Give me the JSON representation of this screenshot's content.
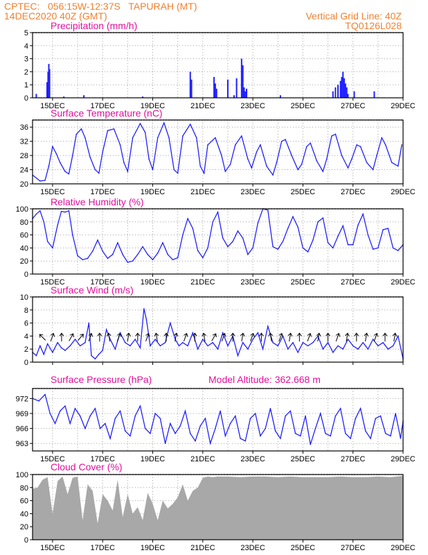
{
  "header": {
    "line1": "CPTEC:   056:15W-12:37S   TAPURAH (MT)",
    "line2": "14DEC2020 40Z (GMT)",
    "grid_note": "Vertical Grid Line: 40Z",
    "code": "TQ0126L028"
  },
  "colors": {
    "header": "#f08030",
    "title": "#e0109a",
    "line": "#2020ff",
    "cloud": "#a8a8a8"
  },
  "x_axis": {
    "range": [
      14.2,
      29.0
    ],
    "ticks": [
      {
        "day": 15,
        "label": "15DEC"
      },
      {
        "day": 17,
        "label": "17DEC"
      },
      {
        "day": 19,
        "label": "19DEC"
      },
      {
        "day": 21,
        "label": "21DEC"
      },
      {
        "day": 23,
        "label": "23DEC"
      },
      {
        "day": 25,
        "label": "25DEC"
      },
      {
        "day": 27,
        "label": "27DEC"
      },
      {
        "day": 29,
        "label": "29DEC"
      }
    ]
  },
  "chart_data": [
    {
      "type": "bar",
      "title": "Precipitation (mm/h)",
      "ylim": [
        0,
        5
      ],
      "yticks": [
        0,
        1,
        2,
        3,
        4,
        5
      ],
      "x": [
        14.35,
        14.78,
        14.82,
        14.85,
        14.88,
        15.45,
        16.25,
        18.6,
        20.5,
        20.55,
        21.45,
        21.5,
        21.55,
        22.0,
        22.25,
        22.35,
        22.55,
        22.6,
        22.65,
        22.7,
        22.75,
        24.1,
        26.2,
        26.3,
        26.4,
        26.5,
        26.55,
        26.6,
        26.65,
        26.7,
        26.75,
        26.8,
        27.05,
        27.85
      ],
      "values": [
        0.3,
        1.2,
        2.0,
        2.6,
        2.2,
        0.1,
        0.2,
        0.1,
        2.0,
        1.4,
        1.6,
        1.1,
        0.7,
        1.4,
        0.2,
        1.5,
        3.0,
        2.5,
        0.8,
        0.5,
        0.7,
        0.2,
        0.5,
        0.8,
        1.0,
        1.3,
        1.6,
        2.0,
        1.5,
        1.1,
        0.8,
        0.3,
        0.5,
        0.5
      ]
    },
    {
      "type": "line",
      "title": "Surface Temperature (nC)",
      "ylim": [
        20,
        38
      ],
      "yticks": [
        20,
        24,
        28,
        32,
        36
      ],
      "x": [
        14.2,
        14.5,
        14.7,
        14.85,
        15.0,
        15.15,
        15.3,
        15.5,
        15.65,
        15.8,
        15.95,
        16.15,
        16.3,
        16.5,
        16.7,
        16.85,
        17.0,
        17.2,
        17.45,
        17.7,
        17.85,
        18.0,
        18.2,
        18.5,
        18.7,
        18.85,
        19.0,
        19.2,
        19.45,
        19.65,
        19.85,
        20.0,
        20.2,
        20.5,
        20.75,
        20.9,
        21.05,
        21.2,
        21.5,
        21.75,
        21.9,
        22.1,
        22.3,
        22.55,
        22.8,
        22.95,
        23.15,
        23.3,
        23.55,
        23.8,
        23.95,
        24.15,
        24.3,
        24.55,
        24.8,
        24.95,
        25.15,
        25.3,
        25.55,
        25.8,
        25.95,
        26.15,
        26.3,
        26.55,
        26.8,
        26.95,
        27.15,
        27.3,
        27.55,
        27.8,
        27.95,
        28.15,
        28.3,
        28.55,
        28.8,
        28.95
      ],
      "values": [
        22.5,
        20.8,
        21.0,
        25.0,
        30.5,
        28.5,
        26.0,
        23.5,
        22.8,
        28.0,
        34.0,
        35.5,
        33.0,
        27.5,
        24.0,
        23.0,
        29.0,
        35.0,
        35.5,
        31.0,
        26.0,
        23.5,
        33.0,
        37.0,
        34.5,
        27.0,
        24.0,
        33.0,
        37.2,
        33.0,
        24.0,
        23.0,
        33.5,
        36.8,
        33.0,
        25.0,
        23.0,
        31.0,
        33.0,
        28.0,
        23.5,
        25.5,
        31.0,
        33.5,
        27.0,
        24.5,
        29.0,
        31.0,
        25.0,
        22.5,
        26.0,
        32.0,
        32.5,
        28.0,
        24.0,
        25.5,
        30.5,
        31.5,
        26.5,
        23.5,
        27.0,
        33.5,
        34.0,
        28.0,
        24.5,
        27.0,
        31.0,
        30.5,
        26.0,
        24.0,
        28.0,
        33.0,
        31.0,
        26.0,
        25.0,
        31.0
      ]
    },
    {
      "type": "line",
      "title": "Relative Humidity (%)",
      "ylim": [
        0,
        100
      ],
      "yticks": [
        0,
        20,
        40,
        60,
        80,
        100
      ],
      "x": [
        14.2,
        14.35,
        14.5,
        14.65,
        14.8,
        15.0,
        15.2,
        15.35,
        15.5,
        15.65,
        15.8,
        16.0,
        16.2,
        16.4,
        16.6,
        16.8,
        17.0,
        17.2,
        17.4,
        17.6,
        17.8,
        18.0,
        18.2,
        18.4,
        18.6,
        18.8,
        19.0,
        19.2,
        19.4,
        19.6,
        19.8,
        20.0,
        20.2,
        20.4,
        20.6,
        20.8,
        21.0,
        21.2,
        21.4,
        21.6,
        21.8,
        22.0,
        22.2,
        22.4,
        22.6,
        22.8,
        23.0,
        23.2,
        23.4,
        23.6,
        23.8,
        24.0,
        24.2,
        24.4,
        24.6,
        24.8,
        25.0,
        25.2,
        25.4,
        25.6,
        25.8,
        26.0,
        26.2,
        26.4,
        26.6,
        26.8,
        27.0,
        27.2,
        27.4,
        27.6,
        27.8,
        28.0,
        28.2,
        28.4,
        28.6,
        28.8,
        29.0
      ],
      "values": [
        85,
        92,
        97,
        80,
        50,
        40,
        75,
        96,
        95,
        97,
        60,
        28,
        22,
        24,
        35,
        52,
        35,
        24,
        30,
        48,
        30,
        18,
        20,
        30,
        42,
        30,
        22,
        32,
        48,
        30,
        22,
        25,
        60,
        85,
        70,
        36,
        25,
        40,
        80,
        95,
        55,
        42,
        50,
        66,
        55,
        30,
        40,
        78,
        100,
        98,
        42,
        38,
        50,
        70,
        88,
        72,
        40,
        34,
        52,
        80,
        86,
        48,
        40,
        58,
        74,
        45,
        45,
        75,
        92,
        60,
        38,
        40,
        68,
        70,
        40,
        36,
        45
      ]
    },
    {
      "type": "line",
      "title": "Surface Wind (m/s)",
      "ylim": [
        0,
        10
      ],
      "yticks": [
        0,
        2,
        4,
        6,
        8,
        10
      ],
      "x": [
        14.2,
        14.35,
        14.5,
        14.65,
        14.8,
        15.0,
        15.2,
        15.35,
        15.5,
        15.7,
        15.9,
        16.1,
        16.3,
        16.45,
        16.55,
        16.7,
        16.85,
        17.0,
        17.15,
        17.3,
        17.5,
        17.7,
        17.9,
        18.1,
        18.3,
        18.5,
        18.65,
        18.75,
        18.9,
        19.1,
        19.3,
        19.5,
        19.7,
        19.9,
        20.05,
        20.2,
        20.4,
        20.6,
        20.8,
        21.0,
        21.2,
        21.4,
        21.6,
        21.8,
        22.0,
        22.2,
        22.4,
        22.6,
        22.8,
        23.0,
        23.2,
        23.4,
        23.6,
        23.8,
        24.0,
        24.2,
        24.4,
        24.6,
        24.8,
        25.0,
        25.2,
        25.4,
        25.6,
        25.8,
        26.0,
        26.2,
        26.4,
        26.6,
        26.8,
        27.0,
        27.2,
        27.4,
        27.6,
        27.8,
        28.0,
        28.2,
        28.4,
        28.6,
        28.8,
        29.0
      ],
      "values": [
        1.5,
        1.0,
        2.5,
        1.2,
        2.8,
        1.5,
        3.0,
        2.2,
        1.8,
        2.5,
        3.5,
        2.5,
        3.0,
        6.0,
        1.0,
        0.5,
        1.2,
        1.8,
        5.0,
        3.5,
        2.0,
        4.5,
        3.0,
        2.5,
        3.5,
        2.2,
        8.2,
        6.5,
        2.5,
        3.5,
        2.5,
        3.0,
        6.0,
        3.5,
        2.5,
        3.0,
        2.5,
        4.5,
        2.0,
        3.5,
        2.5,
        3.0,
        2.0,
        4.5,
        2.5,
        4.0,
        1.0,
        3.0,
        2.0,
        3.5,
        4.5,
        2.0,
        5.5,
        3.0,
        2.5,
        4.0,
        2.0,
        3.0,
        1.5,
        3.0,
        2.5,
        3.0,
        4.0,
        2.0,
        3.0,
        1.5,
        2.5,
        2.0,
        3.5,
        2.5,
        2.0,
        3.0,
        2.0,
        3.5,
        2.5,
        3.0,
        2.0,
        2.5,
        4.0,
        0.5
      ]
    },
    {
      "type": "line",
      "title": "Surface Pressure (hPa)",
      "subtitle": "Model Altitude: 362.668 m",
      "ylim": [
        961.5,
        974
      ],
      "yticks": [
        963,
        966,
        969,
        972
      ],
      "x": [
        14.2,
        14.45,
        14.7,
        14.9,
        15.1,
        15.3,
        15.5,
        15.7,
        15.9,
        16.1,
        16.3,
        16.5,
        16.7,
        16.9,
        17.1,
        17.3,
        17.5,
        17.7,
        17.9,
        18.1,
        18.3,
        18.5,
        18.7,
        18.9,
        19.1,
        19.3,
        19.5,
        19.7,
        19.9,
        20.1,
        20.3,
        20.5,
        20.7,
        20.9,
        21.1,
        21.3,
        21.5,
        21.7,
        21.9,
        22.1,
        22.3,
        22.5,
        22.7,
        22.9,
        23.1,
        23.3,
        23.5,
        23.7,
        23.9,
        24.1,
        24.3,
        24.5,
        24.7,
        24.9,
        25.1,
        25.3,
        25.5,
        25.7,
        25.9,
        26.1,
        26.3,
        26.5,
        26.7,
        26.9,
        27.1,
        27.3,
        27.5,
        27.7,
        27.9,
        28.1,
        28.3,
        28.5,
        28.7,
        28.9,
        29.0
      ],
      "values": [
        972.0,
        971.5,
        972.8,
        969.0,
        967.0,
        969.5,
        970.5,
        967.0,
        970.0,
        968.5,
        966.0,
        968.5,
        970.0,
        966.0,
        967.0,
        964.0,
        968.0,
        969.5,
        965.5,
        964.5,
        968.5,
        970.5,
        966.0,
        965.0,
        969.0,
        968.0,
        963.0,
        967.0,
        965.0,
        966.5,
        969.5,
        965.0,
        963.5,
        966.5,
        968.0,
        963.0,
        966.0,
        969.5,
        964.5,
        967.0,
        968.5,
        964.0,
        963.5,
        968.0,
        969.0,
        964.5,
        966.0,
        970.0,
        965.5,
        964.0,
        968.5,
        969.5,
        965.0,
        964.5,
        968.5,
        962.8,
        966.0,
        969.0,
        965.0,
        964.5,
        968.5,
        970.0,
        965.0,
        964.0,
        968.0,
        970.0,
        965.5,
        964.0,
        968.0,
        968.5,
        965.0,
        964.5,
        969.0,
        964.0,
        967.5
      ]
    },
    {
      "type": "area",
      "title": "Cloud Cover (%)",
      "ylim": [
        0,
        100
      ],
      "yticks": [
        0,
        20,
        40,
        60,
        80,
        100
      ],
      "x": [
        14.2,
        14.4,
        14.6,
        14.8,
        15.0,
        15.2,
        15.4,
        15.6,
        15.8,
        16.0,
        16.2,
        16.4,
        16.6,
        16.8,
        17.0,
        17.2,
        17.4,
        17.6,
        17.8,
        18.0,
        18.2,
        18.4,
        18.6,
        18.8,
        19.0,
        19.2,
        19.4,
        19.6,
        19.8,
        20.0,
        20.2,
        20.4,
        20.6,
        20.8,
        21.0,
        21.2,
        21.4,
        21.6,
        21.8,
        22.0,
        22.5,
        23.0,
        23.5,
        24.0,
        24.5,
        25.0,
        25.5,
        26.0,
        26.5,
        27.0,
        27.5,
        28.0,
        28.5,
        29.0
      ],
      "values": [
        78,
        80,
        92,
        96,
        40,
        90,
        97,
        70,
        95,
        97,
        30,
        85,
        75,
        25,
        70,
        60,
        45,
        92,
        35,
        70,
        40,
        50,
        30,
        72,
        55,
        30,
        60,
        48,
        55,
        65,
        85,
        60,
        75,
        80,
        95,
        97,
        96,
        97,
        97,
        97,
        96,
        97,
        97,
        96,
        97,
        96,
        96,
        96,
        97,
        96,
        96,
        97,
        96,
        98
      ]
    }
  ]
}
